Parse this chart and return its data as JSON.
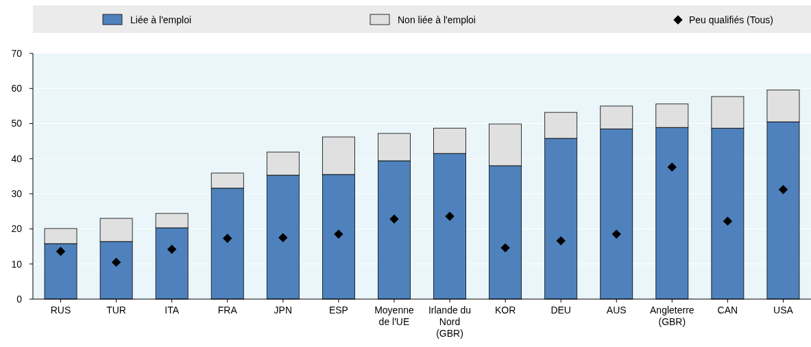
{
  "chart_data": {
    "type": "bar",
    "stacked": true,
    "categories": [
      "RUS",
      "TUR",
      "ITA",
      "FRA",
      "JPN",
      "ESP",
      "Moyenne de l'UE",
      "Irlande du Nord (GBR)",
      "KOR",
      "DEU",
      "AUS",
      "Angleterre (GBR)",
      "CAN",
      "USA"
    ],
    "series": [
      {
        "name": "Liée à l'emploi",
        "color": "#4f81bd",
        "values": [
          15.8,
          16.4,
          20.3,
          31.6,
          35.3,
          35.5,
          39.4,
          41.5,
          38.0,
          45.8,
          48.5,
          48.9,
          48.7,
          50.5
        ]
      },
      {
        "name": "Non liée à l'emploi",
        "color": "#e0e0e0",
        "values": [
          4.3,
          6.6,
          4.1,
          4.3,
          6.6,
          10.7,
          7.8,
          7.2,
          11.9,
          7.4,
          6.5,
          6.7,
          9.0,
          9.1
        ]
      },
      {
        "name": "Peu qualifiés (Tous)",
        "type": "scatter",
        "color": "#000000",
        "marker": "diamond",
        "values": [
          13.6,
          10.5,
          14.2,
          17.3,
          17.5,
          18.5,
          22.8,
          23.6,
          14.6,
          16.6,
          18.5,
          37.6,
          22.2,
          31.2
        ]
      }
    ],
    "ylim": [
      0,
      70
    ],
    "yticks": [
      0,
      10,
      20,
      30,
      40,
      50,
      60,
      70
    ],
    "grid": "y",
    "legend": "top"
  }
}
